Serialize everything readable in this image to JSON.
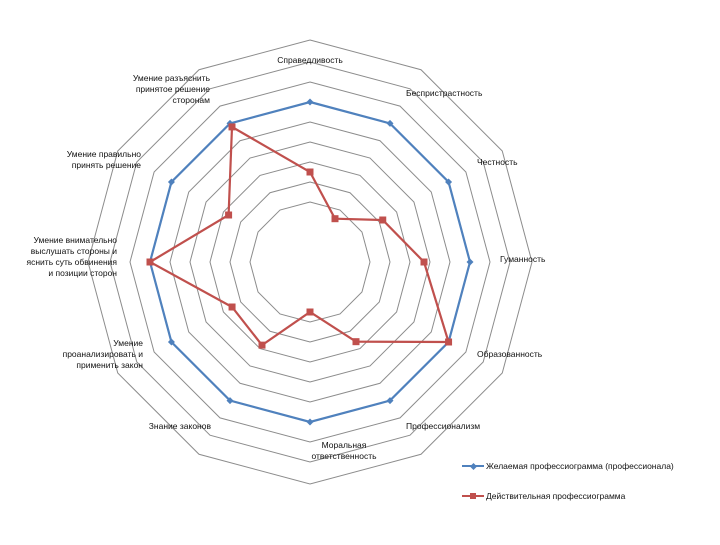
{
  "chart_data": {
    "type": "radar",
    "categories": [
      "Справедливость",
      "Беспристрастность",
      "Честность",
      "Гуманность",
      "Образованность",
      "Профессионализм",
      "Моральная ответственность",
      "Знание законов",
      "Умение проанализировать и применить закон",
      "Умение внимательно выслушать стороны и яснить суть обвинения и позиции сторон",
      "Умение правильно принять решение",
      "Умение разъяснить принятое решение сторонам"
    ],
    "rmax": 10,
    "gridlines": 8,
    "series": [
      {
        "name": "Желаемая профессиограмма (профессионала)",
        "color": "#4f81bd",
        "marker": "diamond",
        "values": [
          8,
          8,
          8,
          8,
          8,
          8,
          8,
          8,
          8,
          8,
          8,
          8
        ]
      },
      {
        "name": "Действительная профессиограмма",
        "color": "#c0504d",
        "marker": "square",
        "values": [
          4.5,
          2.5,
          4.2,
          5.7,
          8,
          4.6,
          2.5,
          4.8,
          4.5,
          8,
          4.7,
          7.8
        ]
      }
    ],
    "legend": "bottom-right",
    "grid": true
  }
}
